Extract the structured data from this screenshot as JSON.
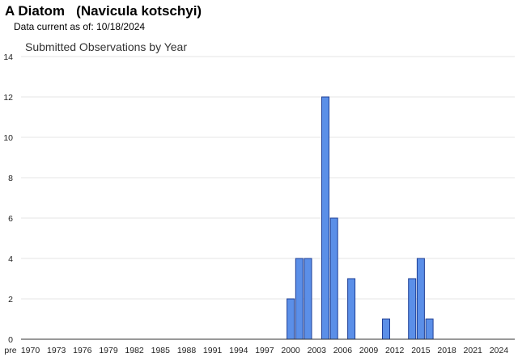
{
  "header": {
    "title": "A Diatom   (Navicula kotschyi)",
    "data_current": "Data current as of: 10/18/2024"
  },
  "colors": {
    "bar_fill": "#5b8fe8",
    "bar_stroke": "#1f3f96",
    "gridline": "#e6e6e6",
    "baseline": "#333333"
  },
  "chart_data": {
    "type": "bar",
    "title": "Submitted Observations by Year",
    "xlabel": "",
    "ylabel": "",
    "ylim": [
      0,
      14
    ],
    "yticks": [
      0,
      2,
      4,
      6,
      8,
      10,
      12,
      14
    ],
    "grid": true,
    "legend": "none",
    "categories": [
      "pre",
      "1970",
      "1971",
      "1972",
      "1973",
      "1974",
      "1975",
      "1976",
      "1977",
      "1978",
      "1979",
      "1980",
      "1981",
      "1982",
      "1983",
      "1984",
      "1985",
      "1986",
      "1987",
      "1988",
      "1989",
      "1990",
      "1991",
      "1992",
      "1993",
      "1994",
      "1995",
      "1996",
      "1997",
      "1998",
      "1999",
      "2000",
      "2001",
      "2002",
      "2003",
      "2004",
      "2005",
      "2006",
      "2007",
      "2008",
      "2009",
      "2010",
      "2011",
      "2012",
      "2013",
      "2014",
      "2015",
      "2016",
      "2017",
      "2018",
      "2019",
      "2020",
      "2021",
      "2022",
      "2023",
      "2024"
    ],
    "x_tick_labels": [
      "pre",
      "1970",
      "1973",
      "1976",
      "1979",
      "1982",
      "1985",
      "1988",
      "1991",
      "1994",
      "1997",
      "2000",
      "2003",
      "2006",
      "2009",
      "2012",
      "2015",
      "2018",
      "2021",
      "2024"
    ],
    "values": [
      0,
      0,
      0,
      0,
      0,
      0,
      0,
      0,
      0,
      0,
      0,
      0,
      0,
      0,
      0,
      0,
      0,
      0,
      0,
      0,
      0,
      0,
      0,
      0,
      0,
      0,
      0,
      0,
      0,
      0,
      0,
      2,
      4,
      4,
      0,
      12,
      6,
      0,
      3,
      0,
      0,
      0,
      1,
      0,
      0,
      3,
      4,
      1,
      0,
      0,
      0,
      0,
      0,
      0,
      0,
      0
    ]
  }
}
